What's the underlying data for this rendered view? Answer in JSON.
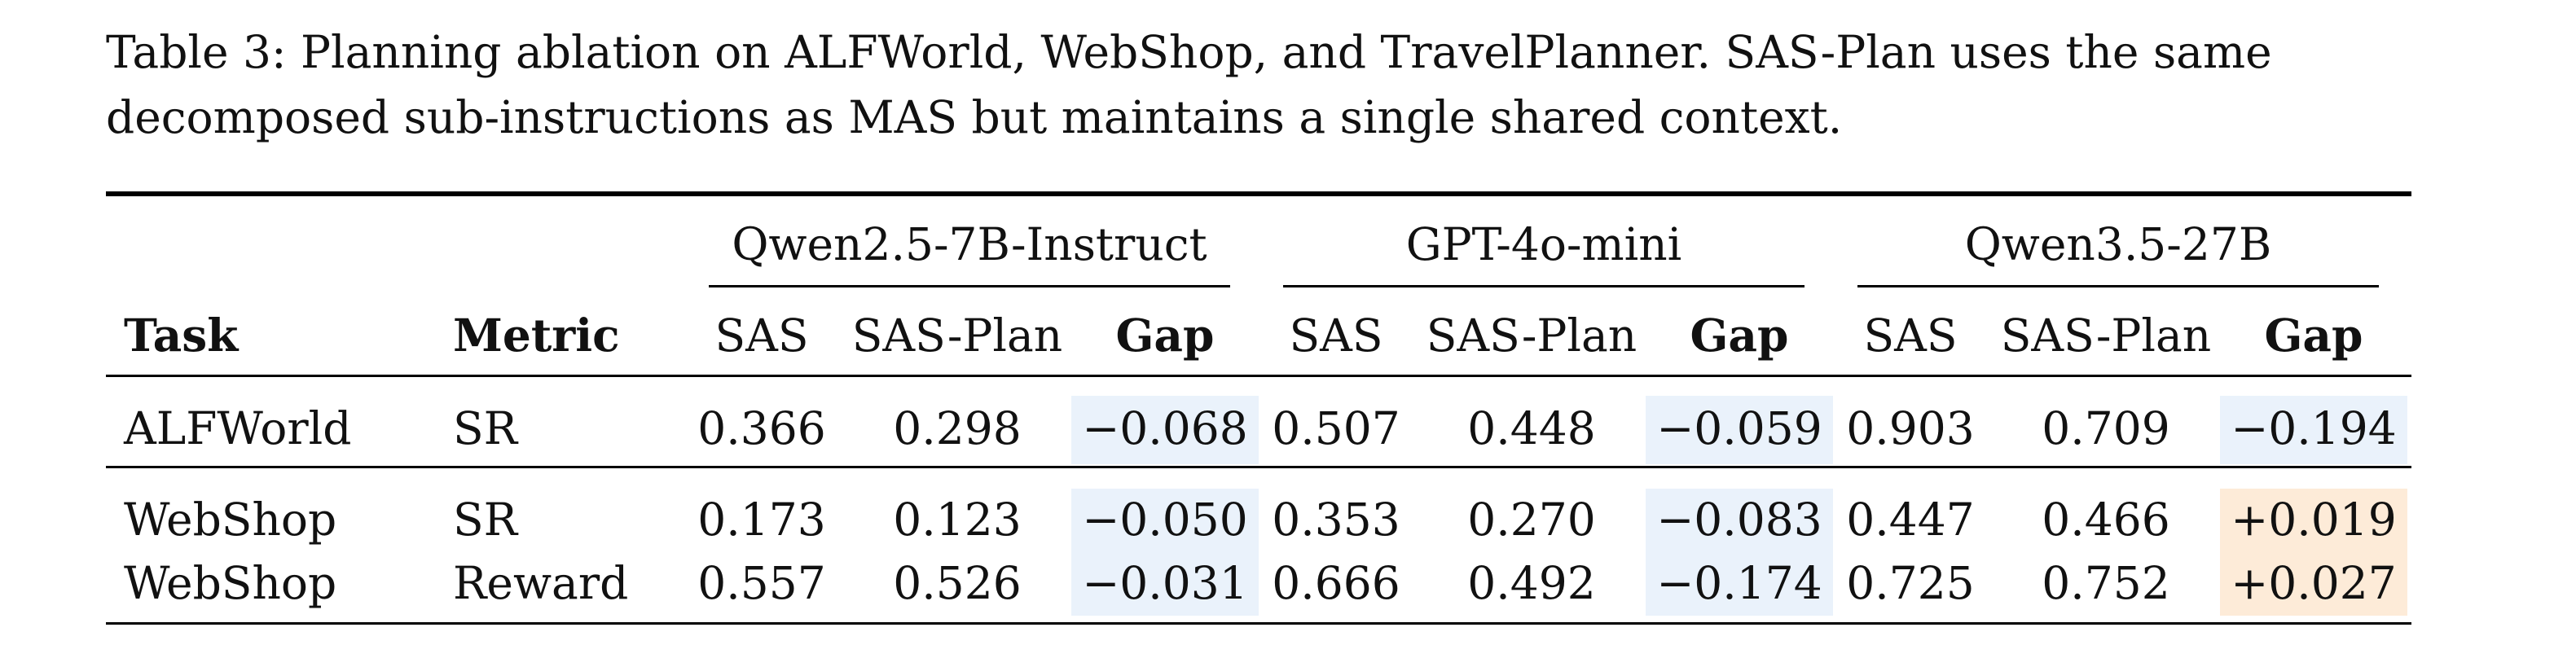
{
  "caption": "Table 3: Planning ablation on ALFWorld, WebShop, and TravelPlanner. SAS-Plan uses the same decomposed sub-instructions as MAS but maintains a single shared context.",
  "table": {
    "groups": [
      "Qwen2.5-7B-Instruct",
      "GPT-4o-mini",
      "Qwen3.5-27B"
    ],
    "headers": {
      "task": "Task",
      "metric": "Metric",
      "sas": "SAS",
      "sas_plan": "SAS-Plan",
      "gap": "Gap"
    },
    "rows": [
      {
        "task": "ALFWorld",
        "metric": "SR",
        "values": [
          "0.366",
          "0.298",
          "−0.068",
          "0.507",
          "0.448",
          "−0.059",
          "0.903",
          "0.709",
          "−0.194"
        ],
        "gap_signs": [
          "neg",
          "neg",
          "neg"
        ]
      },
      {
        "task": "WebShop",
        "metric": "SR",
        "values": [
          "0.173",
          "0.123",
          "−0.050",
          "0.353",
          "0.270",
          "−0.083",
          "0.447",
          "0.466",
          "+0.019"
        ],
        "gap_signs": [
          "neg",
          "neg",
          "pos"
        ]
      },
      {
        "task": "WebShop",
        "metric": "Reward",
        "values": [
          "0.557",
          "0.526",
          "−0.031",
          "0.666",
          "0.492",
          "−0.174",
          "0.725",
          "0.752",
          "+0.027"
        ],
        "gap_signs": [
          "neg",
          "neg",
          "pos"
        ]
      }
    ],
    "colors": {
      "negative_gap_bg": "#eaf2fb",
      "positive_gap_bg": "#fdebd8"
    }
  }
}
